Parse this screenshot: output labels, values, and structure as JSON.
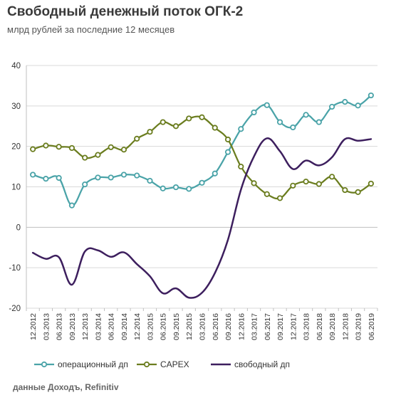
{
  "header": {
    "title": "Свободный денежный поток ОГК-2",
    "subtitle": "млрд рублей за последние 12 месяцев"
  },
  "footer": {
    "source": "данные Доходъ, Refinitiv"
  },
  "chart_data": {
    "type": "line",
    "title": "Свободный денежный поток ОГК-2",
    "subtitle": "млрд рублей за последние 12 месяцев",
    "xlabel": "",
    "ylabel": "",
    "ylim": [
      -20,
      40
    ],
    "yticks": [
      "-20",
      "-10",
      "0",
      "10",
      "20",
      "30",
      "40"
    ],
    "grid": true,
    "legend": "bottom",
    "categories": [
      "12.2012",
      "03.2013",
      "06.2013",
      "09.2013",
      "12.2013",
      "03.2014",
      "06.2014",
      "09.2014",
      "12.2014",
      "03.2015",
      "06.2015",
      "09.2015",
      "12.2015",
      "03.2016",
      "06.2016",
      "09.2016",
      "12.2016",
      "03.2017",
      "06.2017",
      "09.2017",
      "12.2017",
      "03.2018",
      "06.2018",
      "09.2018",
      "12.2018",
      "03.2019",
      "06.2019"
    ],
    "series": [
      {
        "name": "операционный дп",
        "color": "#4aa3a8",
        "marker": true,
        "values": [
          13.0,
          12.0,
          12.2,
          5.4,
          10.6,
          12.3,
          12.3,
          13.0,
          12.8,
          11.5,
          9.6,
          9.9,
          9.5,
          11.0,
          13.3,
          18.6,
          24.3,
          28.4,
          30.2,
          26.0,
          24.7,
          27.8,
          26.0,
          29.8,
          31.0,
          30.1,
          32.6
        ]
      },
      {
        "name": "CAPEX",
        "color": "#6b7d1f",
        "marker": true,
        "values": [
          19.3,
          20.2,
          19.9,
          19.6,
          17.2,
          17.9,
          19.8,
          19.2,
          21.9,
          23.6,
          26.0,
          25.0,
          26.9,
          27.2,
          24.6,
          21.7,
          15.0,
          10.9,
          8.2,
          7.2,
          10.3,
          11.3,
          10.7,
          12.5,
          9.2,
          8.7,
          10.8
        ]
      },
      {
        "name": "свободный дп",
        "color": "#3d1f5e",
        "marker": false,
        "values": [
          -6.3,
          -7.8,
          -7.4,
          -14.2,
          -6.0,
          -5.7,
          -7.3,
          -6.2,
          -9.1,
          -12.1,
          -16.3,
          -15.1,
          -17.4,
          -16.2,
          -11.3,
          -3.1,
          9.3,
          17.5,
          22.0,
          18.8,
          14.4,
          16.5,
          15.3,
          17.3,
          21.8,
          21.4,
          21.8
        ]
      }
    ]
  }
}
